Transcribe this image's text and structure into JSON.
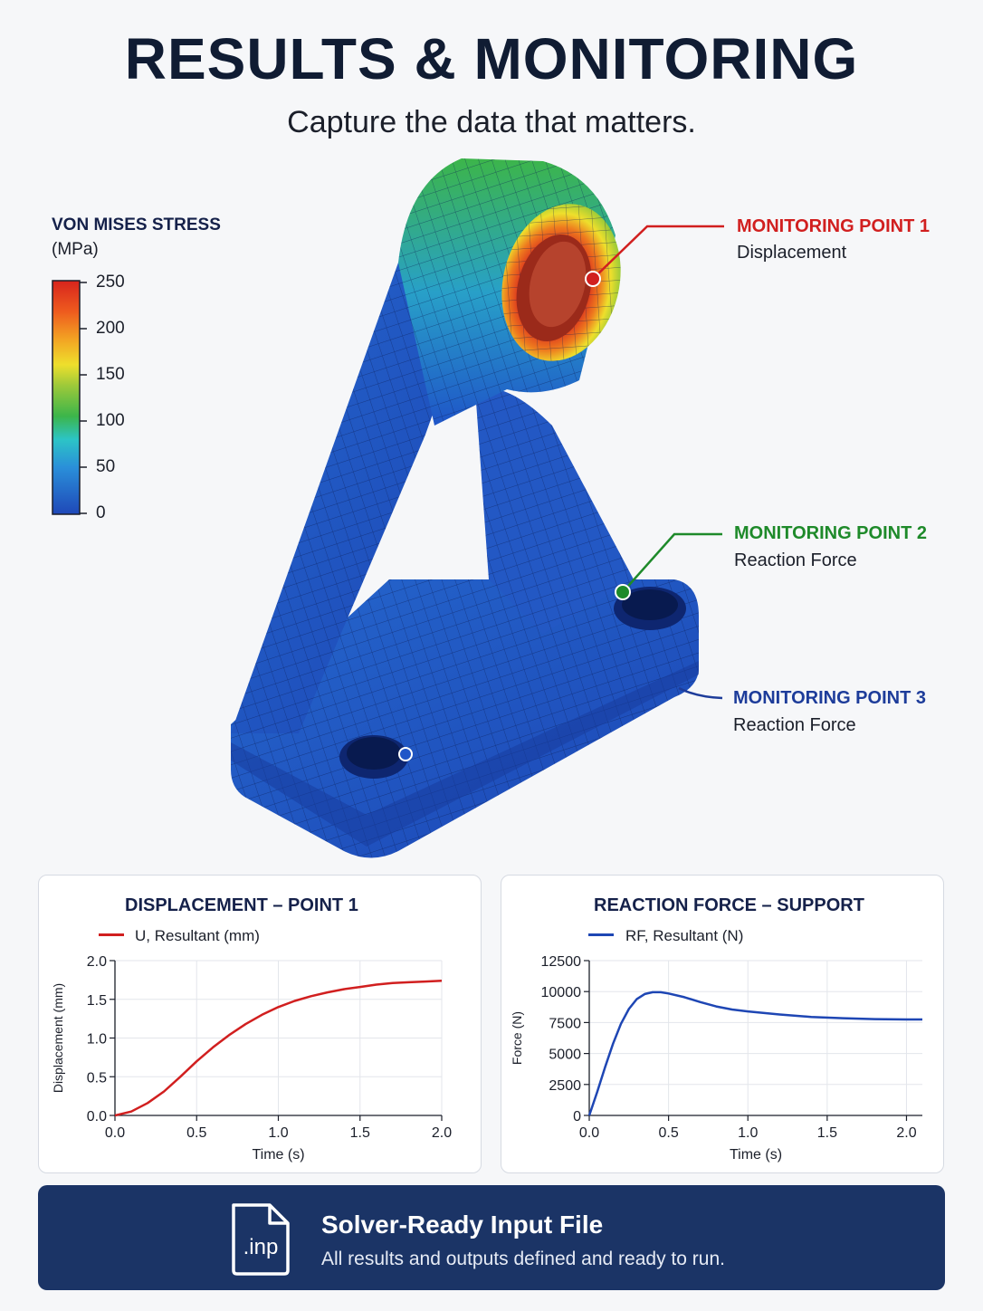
{
  "header": {
    "title": "RESULTS & MONITORING",
    "subtitle": "Capture the data that matters."
  },
  "legend": {
    "title": "VON MISES STRESS",
    "unit": "(MPa)",
    "ticks": [
      "250",
      "200",
      "150",
      "100",
      "50",
      "0"
    ],
    "colors": [
      "#d7241d",
      "#ee5a1e",
      "#f3a323",
      "#eedf2c",
      "#9cc93a",
      "#3cb54a",
      "#2cc4c6",
      "#2a8fd9",
      "#1f55c8"
    ]
  },
  "monitoring_points": [
    {
      "title": "MONITORING POINT 1",
      "subtitle": "Displacement",
      "color": "#d11f1f"
    },
    {
      "title": "MONITORING POINT 2",
      "subtitle": "Reaction Force",
      "color": "#1e8a2a"
    },
    {
      "title": "MONITORING POINT 3",
      "subtitle": "Reaction Force",
      "color": "#1d3c9a"
    }
  ],
  "chart_data": [
    {
      "type": "line",
      "title": "DISPLACEMENT – POINT 1",
      "xlabel": "Time (s)",
      "ylabel": "Displacement (mm)",
      "xlim": [
        0,
        2
      ],
      "ylim": [
        0,
        2
      ],
      "xticks": [
        "0.0",
        "0.5",
        "1.0",
        "1.5",
        "2.0"
      ],
      "yticks": [
        "0.0",
        "0.5",
        "1.0",
        "1.5",
        "2.0"
      ],
      "grid": true,
      "legend": "top-left",
      "series": [
        {
          "name": "U, Resultant (mm)",
          "color": "#d11f1f",
          "x": [
            0,
            0.1,
            0.2,
            0.3,
            0.4,
            0.5,
            0.6,
            0.7,
            0.8,
            0.9,
            1.0,
            1.1,
            1.2,
            1.3,
            1.4,
            1.5,
            1.6,
            1.7,
            1.8,
            1.9,
            2.0
          ],
          "y": [
            0,
            0.05,
            0.16,
            0.31,
            0.5,
            0.7,
            0.88,
            1.04,
            1.18,
            1.3,
            1.4,
            1.48,
            1.54,
            1.59,
            1.63,
            1.66,
            1.69,
            1.71,
            1.72,
            1.73,
            1.74
          ]
        }
      ]
    },
    {
      "type": "line",
      "title": "REACTION FORCE – SUPPORT",
      "xlabel": "Time (s)",
      "ylabel": "Force (N)",
      "xlim": [
        0,
        2.1
      ],
      "ylim": [
        0,
        12500
      ],
      "xticks": [
        "0.0",
        "0.5",
        "1.0",
        "1.5",
        "2.0"
      ],
      "yticks": [
        "0",
        "2500",
        "5000",
        "7500",
        "10000",
        "12500"
      ],
      "grid": true,
      "legend": "top-left",
      "series": [
        {
          "name": "RF, Resultant (N)",
          "color": "#1e46b4",
          "x": [
            0,
            0.05,
            0.1,
            0.15,
            0.2,
            0.25,
            0.3,
            0.35,
            0.4,
            0.45,
            0.5,
            0.6,
            0.7,
            0.8,
            0.9,
            1.0,
            1.2,
            1.4,
            1.6,
            1.8,
            2.0,
            2.1
          ],
          "y": [
            0,
            1900,
            3900,
            5800,
            7400,
            8600,
            9400,
            9800,
            9950,
            9950,
            9850,
            9550,
            9150,
            8800,
            8550,
            8400,
            8150,
            7950,
            7850,
            7780,
            7750,
            7750
          ]
        }
      ]
    }
  ],
  "footer": {
    "file_ext": ".inp",
    "title": "Solver-Ready Input File",
    "subtitle": "All results and outputs defined and ready to run."
  }
}
